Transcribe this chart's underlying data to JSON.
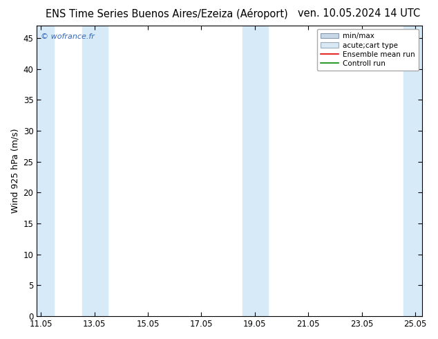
{
  "title_left": "ENS Time Series Buenos Aires/Ezeiza (Aéroport)",
  "title_right": "ven. 10.05.2024 14 UTC",
  "ylabel": "Wind 925 hPa (m/s)",
  "ylim": [
    0,
    47
  ],
  "yticks": [
    0,
    5,
    10,
    15,
    20,
    25,
    30,
    35,
    40,
    45
  ],
  "xlim": [
    10.9,
    25.3
  ],
  "xtick_positions": [
    11.05,
    13.05,
    15.05,
    17.05,
    19.05,
    21.05,
    23.05,
    25.05
  ],
  "xtick_labels": [
    "11.05",
    "13.05",
    "15.05",
    "17.05",
    "19.05",
    "21.05",
    "23.05",
    "25.05"
  ],
  "shaded_bands": [
    [
      10.9,
      11.55
    ],
    [
      12.6,
      13.55
    ],
    [
      18.6,
      19.55
    ],
    [
      24.6,
      25.3
    ]
  ],
  "shaded_color": "#d6eaf8",
  "background_color": "#ffffff",
  "plot_bg_color": "#ffffff",
  "watermark_text": "© wofrance.fr",
  "watermark_color": "#3366bb",
  "legend_minmax_fc": "#c8d8e8",
  "legend_minmax_ec": "#8899aa",
  "legend_acute_fc": "#d8e8f4",
  "legend_acute_ec": "#99aabb",
  "legend_ensemble_color": "#dd0000",
  "legend_control_color": "#008800",
  "title_fontsize": 10.5,
  "axis_label_fontsize": 9,
  "tick_fontsize": 8.5,
  "legend_fontsize": 7.5
}
